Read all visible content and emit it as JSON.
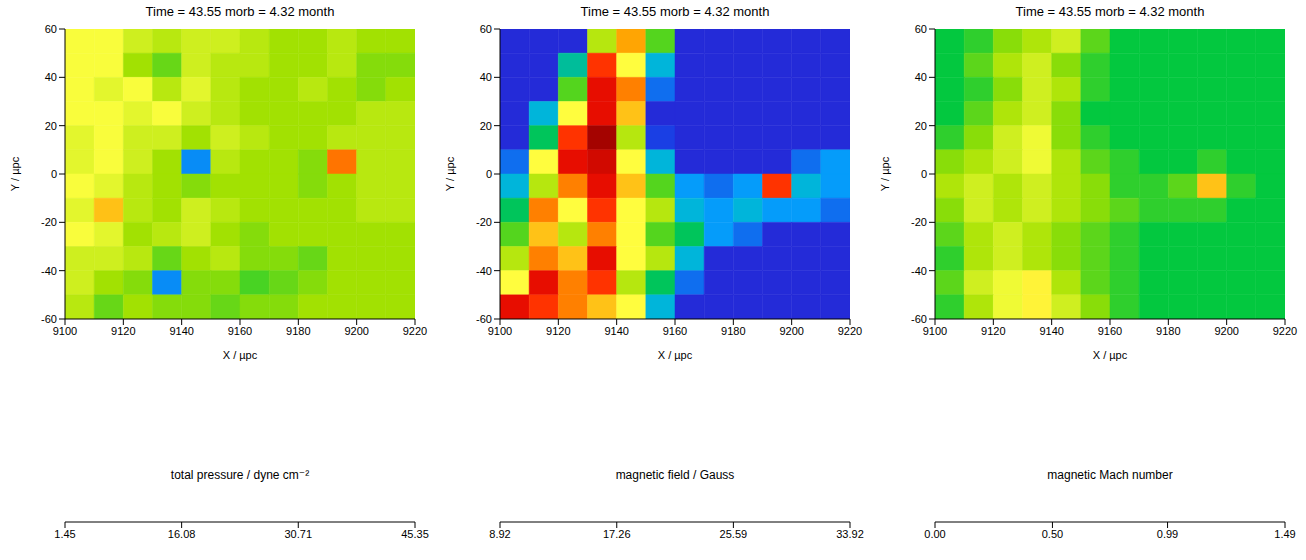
{
  "chart_data": [
    {
      "type": "heatmap",
      "title": "Time = 43.55 morb = 4.32 month",
      "x_label": "X / µpc",
      "y_label": "Y / µpc",
      "xlim": [
        9100,
        9220
      ],
      "xticks": [
        9100,
        9120,
        9140,
        9160,
        9180,
        9200,
        9220
      ],
      "ylim": [
        -60,
        60
      ],
      "yticks": [
        -60,
        -40,
        -20,
        0,
        20,
        40,
        60
      ],
      "x_edges": [
        9100,
        9110,
        9120,
        9130,
        9140,
        9150,
        9160,
        9170,
        9180,
        9190,
        9200,
        9210,
        9220
      ],
      "y_edges": [
        60,
        50,
        40,
        30,
        20,
        10,
        0,
        -10,
        -20,
        -30,
        -40,
        -50,
        -60
      ],
      "cells": [
        [
          24,
          24,
          22,
          21,
          22,
          22,
          21,
          20,
          20,
          21,
          20,
          20
        ],
        [
          24,
          24,
          20,
          18,
          22,
          21,
          21,
          20,
          20,
          21,
          19,
          19
        ],
        [
          24,
          23,
          24,
          21,
          23,
          21,
          20,
          20,
          21,
          20,
          19,
          20
        ],
        [
          24,
          24,
          23,
          24,
          22,
          21,
          20,
          20,
          20,
          20,
          21,
          21
        ],
        [
          23,
          24,
          22,
          22,
          20,
          22,
          21,
          20,
          20,
          21,
          21,
          21
        ],
        [
          23,
          24,
          22,
          20,
          8,
          21,
          20,
          20,
          19,
          32,
          21,
          21
        ],
        [
          24,
          23,
          21,
          20,
          19,
          20,
          20,
          20,
          19,
          20,
          21,
          21
        ],
        [
          23,
          28,
          21,
          20,
          22,
          21,
          20,
          20,
          20,
          20,
          21,
          21
        ],
        [
          24,
          23,
          20,
          21,
          22,
          20,
          19,
          20,
          20,
          20,
          20,
          20
        ],
        [
          22,
          22,
          21,
          18,
          20,
          21,
          19,
          19,
          18,
          20,
          20,
          20
        ],
        [
          22,
          20,
          19,
          8,
          19,
          19,
          17,
          18,
          19,
          20,
          20,
          20
        ],
        [
          21,
          18,
          20,
          19,
          19,
          18,
          19,
          19,
          20,
          20,
          20,
          20
        ]
      ],
      "colorbar": {
        "label": "total pressure / dyne cm⁻²",
        "range": [
          1.45,
          45.35
        ],
        "ticks": [
          1.45,
          16.08,
          30.71,
          45.35
        ]
      }
    },
    {
      "type": "heatmap",
      "title": "Time = 43.55 morb = 4.32 month",
      "x_label": "X / µpc",
      "y_label": "Y / µpc",
      "xlim": [
        9100,
        9220
      ],
      "xticks": [
        9100,
        9120,
        9140,
        9160,
        9180,
        9200,
        9220
      ],
      "ylim": [
        -60,
        60
      ],
      "yticks": [
        -60,
        -40,
        -20,
        0,
        20,
        40,
        60
      ],
      "x_edges": [
        9100,
        9110,
        9120,
        9130,
        9140,
        9150,
        9160,
        9170,
        9180,
        9190,
        9200,
        9210,
        9220
      ],
      "y_edges": [
        60,
        50,
        40,
        30,
        20,
        10,
        0,
        -10,
        -20,
        -30,
        -40,
        -50,
        -60
      ],
      "cells": [
        [
          10.5,
          10.5,
          10.5,
          20,
          25,
          18,
          10.5,
          10.5,
          10.5,
          10.5,
          10.5,
          10.5
        ],
        [
          10.5,
          10.5,
          15,
          28,
          22,
          14,
          10.5,
          10.5,
          10.5,
          10.5,
          10.5,
          10.5
        ],
        [
          10.5,
          10.5,
          18,
          30,
          26,
          12,
          10.5,
          10.5,
          10.5,
          10.5,
          10.5,
          10.5
        ],
        [
          10.5,
          14,
          22,
          30,
          24,
          10.5,
          10.5,
          10.5,
          10.5,
          10.5,
          10.5,
          10.5
        ],
        [
          10.5,
          16,
          28,
          33,
          20,
          11,
          10.5,
          10.5,
          10.5,
          10.5,
          10.5,
          10.5
        ],
        [
          12,
          22,
          30,
          31,
          22,
          14,
          10.5,
          10.5,
          10.5,
          10.5,
          12,
          13
        ],
        [
          14,
          20,
          26,
          30,
          24,
          18,
          13,
          12,
          13,
          28,
          14,
          13
        ],
        [
          16,
          26,
          22,
          28,
          22,
          20,
          14,
          13,
          14,
          13,
          13,
          12
        ],
        [
          18,
          24,
          20,
          26,
          22,
          18,
          16,
          13,
          12,
          10.5,
          10.5,
          10.5
        ],
        [
          20,
          26,
          24,
          30,
          22,
          20,
          14,
          10.5,
          10.5,
          10.5,
          10.5,
          10.5
        ],
        [
          22,
          30,
          26,
          28,
          20,
          16,
          12,
          10.5,
          10.5,
          10.5,
          10.5,
          10.5
        ],
        [
          30,
          28,
          26,
          24,
          22,
          14,
          10.5,
          10.5,
          10.5,
          10.5,
          10.5,
          10.5
        ]
      ],
      "colorbar": {
        "label": "magnetic field / Gauss",
        "range": [
          8.92,
          33.92
        ],
        "ticks": [
          8.92,
          17.26,
          25.59,
          33.92
        ]
      }
    },
    {
      "type": "heatmap",
      "title": "Time = 43.55 morb = 4.32 month",
      "x_label": "X / µpc",
      "y_label": "Y / µpc",
      "xlim": [
        9100,
        9220
      ],
      "xticks": [
        9100,
        9120,
        9140,
        9160,
        9180,
        9200,
        9220
      ],
      "ylim": [
        -60,
        60
      ],
      "yticks": [
        -60,
        -40,
        -20,
        0,
        20,
        40,
        60
      ],
      "x_edges": [
        9100,
        9110,
        9120,
        9130,
        9140,
        9150,
        9160,
        9170,
        9180,
        9190,
        9200,
        9210,
        9220
      ],
      "y_edges": [
        60,
        50,
        40,
        30,
        20,
        10,
        0,
        -10,
        -20,
        -30,
        -40,
        -50,
        -60
      ],
      "cells": [
        [
          0.45,
          0.5,
          0.6,
          0.65,
          0.7,
          0.55,
          0.45,
          0.45,
          0.45,
          0.45,
          0.45,
          0.45
        ],
        [
          0.45,
          0.55,
          0.65,
          0.7,
          0.6,
          0.5,
          0.45,
          0.45,
          0.45,
          0.45,
          0.45,
          0.45
        ],
        [
          0.45,
          0.5,
          0.6,
          0.7,
          0.65,
          0.5,
          0.45,
          0.45,
          0.45,
          0.45,
          0.45,
          0.45
        ],
        [
          0.45,
          0.55,
          0.65,
          0.7,
          0.6,
          0.45,
          0.45,
          0.45,
          0.45,
          0.45,
          0.45,
          0.45
        ],
        [
          0.5,
          0.6,
          0.7,
          0.75,
          0.6,
          0.5,
          0.45,
          0.45,
          0.45,
          0.45,
          0.45,
          0.45
        ],
        [
          0.6,
          0.65,
          0.7,
          0.75,
          0.65,
          0.55,
          0.5,
          0.45,
          0.45,
          0.5,
          0.45,
          0.45
        ],
        [
          0.65,
          0.7,
          0.65,
          0.7,
          0.65,
          0.6,
          0.5,
          0.5,
          0.55,
          0.9,
          0.5,
          0.45
        ],
        [
          0.6,
          0.7,
          0.65,
          0.7,
          0.65,
          0.6,
          0.55,
          0.5,
          0.5,
          0.5,
          0.45,
          0.45
        ],
        [
          0.55,
          0.65,
          0.7,
          0.65,
          0.6,
          0.55,
          0.5,
          0.45,
          0.45,
          0.45,
          0.45,
          0.45
        ],
        [
          0.5,
          0.65,
          0.7,
          0.65,
          0.6,
          0.55,
          0.5,
          0.45,
          0.45,
          0.45,
          0.45,
          0.45
        ],
        [
          0.55,
          0.7,
          0.75,
          0.8,
          0.65,
          0.55,
          0.5,
          0.45,
          0.45,
          0.45,
          0.45,
          0.45
        ],
        [
          0.5,
          0.65,
          0.75,
          0.8,
          0.7,
          0.6,
          0.5,
          0.45,
          0.45,
          0.45,
          0.45,
          0.45
        ]
      ],
      "colorbar": {
        "label": "magnetic Mach number",
        "range": [
          0,
          1.49
        ],
        "ticks": [
          {
            "value": 0,
            "label": "0.00"
          },
          {
            "value": 0.5,
            "label": "0.50"
          },
          0.99,
          1.49
        ]
      }
    }
  ]
}
